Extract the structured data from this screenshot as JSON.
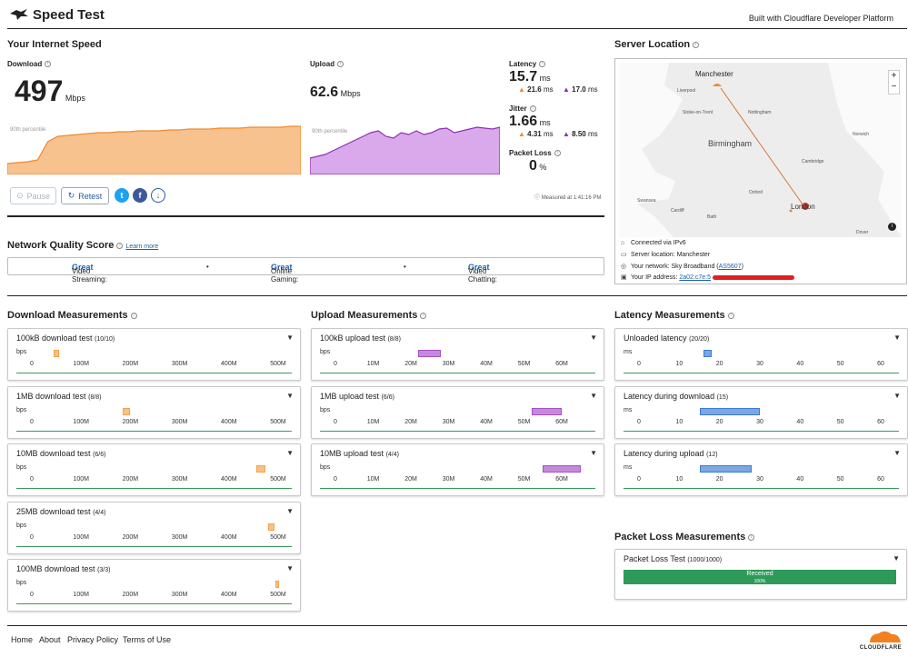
{
  "header": {
    "title": "Speed Test",
    "built_with": "Built with Cloudflare Developer Platform"
  },
  "speed": {
    "heading": "Your Internet Speed",
    "download": {
      "label": "Download",
      "value": "497",
      "unit": "Mbps",
      "percentile": "90th percentile"
    },
    "upload": {
      "label": "Upload",
      "value": "62.6",
      "unit": "Mbps",
      "percentile": "90th percentile"
    },
    "latency": {
      "label": "Latency",
      "value": "15.7",
      "unit": "ms",
      "down": "21.6",
      "down_unit": "ms",
      "up": "17.0",
      "up_unit": "ms"
    },
    "jitter": {
      "label": "Jitter",
      "value": "1.66",
      "unit": "ms",
      "down": "4.31",
      "down_unit": "ms",
      "up": "8.50",
      "up_unit": "ms"
    },
    "packet_loss": {
      "label": "Packet Loss",
      "value": "0",
      "unit": "%"
    },
    "measured_at": "Measured at 1:41:16 PM",
    "pause_label": "Pause",
    "retest_label": "Retest"
  },
  "server": {
    "heading": "Server Location",
    "map_labels": {
      "manchester": "Manchester",
      "liverpool": "Liverpool",
      "stoke": "Stoke-on-Trent",
      "nottingham": "Nottingham",
      "norwich": "Norwich",
      "birmingham": "Birmingham",
      "cambridge": "Cambridge",
      "oxford": "Oxford",
      "swansea": "Swansea",
      "cardiff": "Cardiff",
      "bath": "Bath",
      "london": "London",
      "dover": "Dover"
    },
    "connected": "Connected via IPv6",
    "location": "Server location: Manchester",
    "network_prefix": "Your network: Sky Broadband (",
    "network_as": "AS5607",
    "network_suffix": ")",
    "ip_prefix": "Your IP address:",
    "ip_value": "2a02:c7e:5"
  },
  "nq": {
    "heading": "Network Quality Score",
    "learn_more": "Learn more",
    "items": [
      {
        "label": "Video Streaming:",
        "value": "Great"
      },
      {
        "label": "Online Gaming:",
        "value": "Great"
      },
      {
        "label": "Video Chatting:",
        "value": "Great"
      }
    ],
    "sep": "•"
  },
  "dl_meas": {
    "heading": "Download Measurements",
    "unit": "bps",
    "ticks": [
      "0",
      "100M",
      "200M",
      "300M",
      "400M",
      "500M"
    ],
    "tests": [
      {
        "name": "100kB download test",
        "count": "(10/10)"
      },
      {
        "name": "1MB download test",
        "count": "(8/8)"
      },
      {
        "name": "10MB download test",
        "count": "(6/6)"
      },
      {
        "name": "25MB download test",
        "count": "(4/4)"
      },
      {
        "name": "100MB download test",
        "count": "(3/3)"
      }
    ]
  },
  "ul_meas": {
    "heading": "Upload Measurements",
    "unit": "bps",
    "ticks": [
      "0",
      "10M",
      "20M",
      "30M",
      "40M",
      "50M",
      "60M"
    ],
    "tests": [
      {
        "name": "100kB upload test",
        "count": "(8/8)"
      },
      {
        "name": "1MB upload test",
        "count": "(6/6)"
      },
      {
        "name": "10MB upload test",
        "count": "(4/4)"
      }
    ]
  },
  "lat_meas": {
    "heading": "Latency Measurements",
    "unit": "ms",
    "ticks": [
      "0",
      "10",
      "20",
      "30",
      "40",
      "50",
      "60"
    ],
    "tests": [
      {
        "name": "Unloaded latency",
        "count": "(20/20)"
      },
      {
        "name": "Latency during download",
        "count": "(15)"
      },
      {
        "name": "Latency during upload",
        "count": "(12)"
      }
    ]
  },
  "pl_meas": {
    "heading": "Packet Loss Measurements",
    "test_name": "Packet Loss Test",
    "count": "(1000/1000)",
    "bar_label": "Received",
    "bar_pct": "100%"
  },
  "footer": {
    "links": [
      "Home",
      "About",
      "Privacy Policy",
      "Terms of Use"
    ],
    "brand": "CLOUDFLARE"
  },
  "colors": {
    "download": "#f4a24a",
    "upload": "#a64fc8",
    "latency": "#3a7bd5",
    "good": "#2e9a5a",
    "link": "#1d5fa8"
  }
}
